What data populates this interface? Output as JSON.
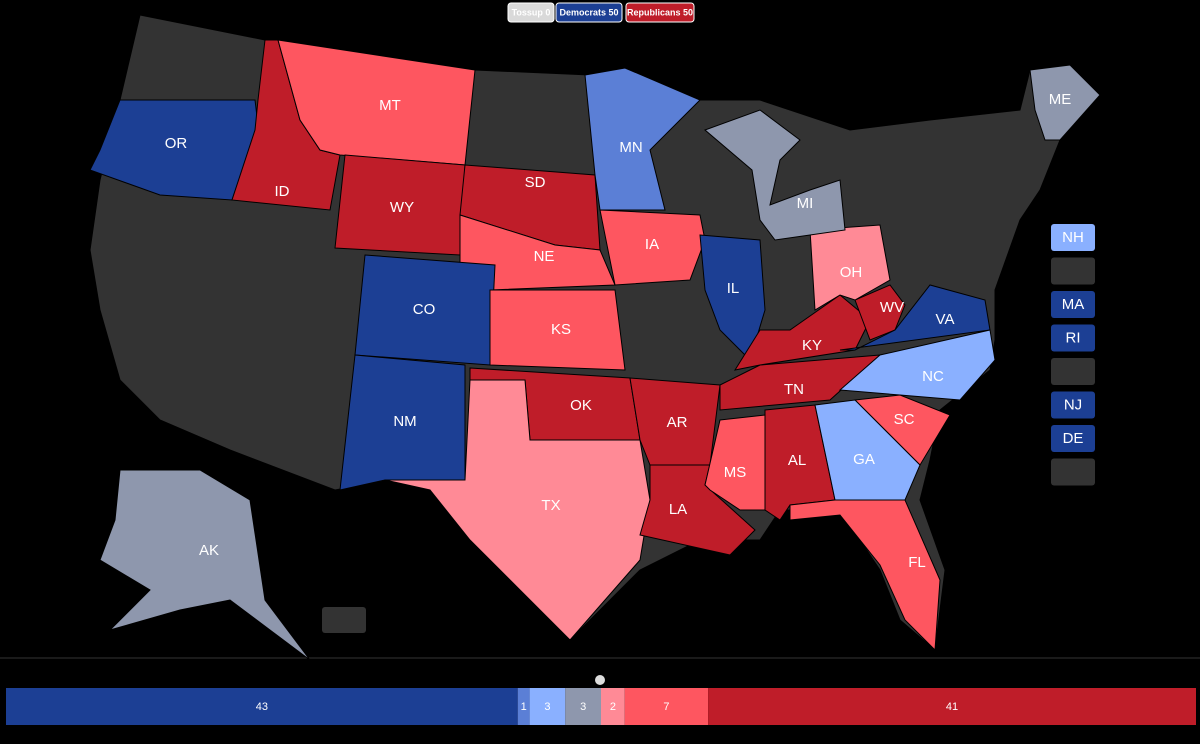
{
  "header": {
    "buttons": [
      {
        "label": "Tossup 0",
        "color": "#d9d9d9"
      },
      {
        "label": "Democrats 50",
        "color": "#1c3f94"
      },
      {
        "label": "Republicans 50",
        "color": "#bf1d29"
      }
    ]
  },
  "map": {
    "base_color": "#333333",
    "states": [
      {
        "abbr": "OR",
        "color": "#1c3f94"
      },
      {
        "abbr": "ID",
        "color": "#bf1d29"
      },
      {
        "abbr": "MT",
        "color": "#fe5660"
      },
      {
        "abbr": "WY",
        "color": "#bf1d29"
      },
      {
        "abbr": "SD",
        "color": "#bf1d29"
      },
      {
        "abbr": "NE",
        "color": "#fe5660"
      },
      {
        "abbr": "IA",
        "color": "#fe5660"
      },
      {
        "abbr": "MN",
        "color": "#5b7fd6"
      },
      {
        "abbr": "IL",
        "color": "#1c3f94"
      },
      {
        "abbr": "CO",
        "color": "#1c3f94"
      },
      {
        "abbr": "KS",
        "color": "#fe5660"
      },
      {
        "abbr": "NM",
        "color": "#1c3f94"
      },
      {
        "abbr": "OK",
        "color": "#bf1d29"
      },
      {
        "abbr": "TX",
        "color": "#ff8a96"
      },
      {
        "abbr": "AR",
        "color": "#bf1d29"
      },
      {
        "abbr": "LA",
        "color": "#bf1d29"
      },
      {
        "abbr": "MS",
        "color": "#fe5660"
      },
      {
        "abbr": "AL",
        "color": "#bf1d29"
      },
      {
        "abbr": "TN",
        "color": "#bf1d29"
      },
      {
        "abbr": "KY",
        "color": "#bf1d29"
      },
      {
        "abbr": "WV",
        "color": "#bf1d29"
      },
      {
        "abbr": "OH",
        "color": "#ff8a96"
      },
      {
        "abbr": "VA",
        "color": "#1c3f94"
      },
      {
        "abbr": "NC",
        "color": "#8ab0ff"
      },
      {
        "abbr": "SC",
        "color": "#fe5660"
      },
      {
        "abbr": "GA",
        "color": "#8ab0ff"
      },
      {
        "abbr": "FL",
        "color": "#fe5660"
      },
      {
        "abbr": "MI",
        "color": "#8e97ad"
      },
      {
        "abbr": "ME",
        "color": "#8e97ad"
      },
      {
        "abbr": "AK",
        "color": "#8e97ad"
      }
    ],
    "small_states": [
      {
        "abbr": "NH",
        "color": "#8ab0ff"
      },
      {
        "color": "#333333"
      },
      {
        "abbr": "MA",
        "color": "#1c3f94"
      },
      {
        "abbr": "RI",
        "color": "#1c3f94"
      },
      {
        "color": "#333333"
      },
      {
        "abbr": "NJ",
        "color": "#1c3f94"
      },
      {
        "abbr": "DE",
        "color": "#1c3f94"
      },
      {
        "color": "#333333"
      }
    ]
  },
  "bar": {
    "segments": [
      {
        "value": 43,
        "color": "#1c3f94"
      },
      {
        "value": 1,
        "color": "#5b7fd6"
      },
      {
        "value": 3,
        "color": "#8ab0ff"
      },
      {
        "value": 3,
        "color": "#8e97ad"
      },
      {
        "value": 2,
        "color": "#ff8a96"
      },
      {
        "value": 7,
        "color": "#fe5660"
      },
      {
        "value": 41,
        "color": "#bf1d29"
      }
    ]
  }
}
